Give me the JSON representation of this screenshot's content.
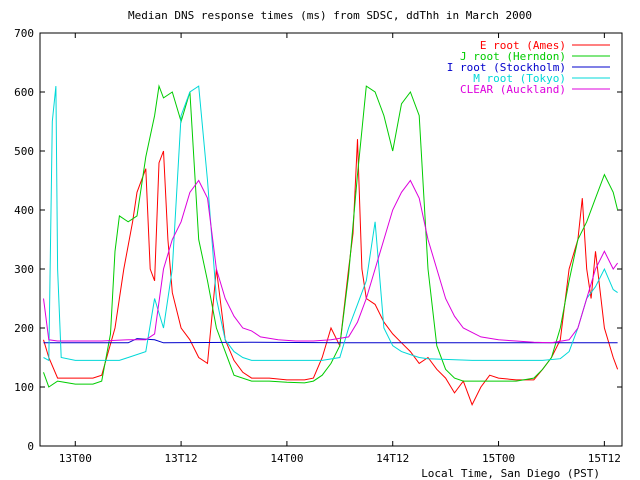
{
  "chart_data": {
    "type": "line",
    "title": "Median DNS response times (ms) from SDSC, ddThh in March 2000",
    "xlabel": "Local Time, San Diego (PST)",
    "ylabel": "",
    "ylim": [
      0,
      700
    ],
    "yticks": [
      0,
      100,
      200,
      300,
      400,
      500,
      600,
      700
    ],
    "xlim": [
      -4,
      62
    ],
    "xticks": [
      {
        "x": 0,
        "label": "13T00"
      },
      {
        "x": 12,
        "label": "13T12"
      },
      {
        "x": 24,
        "label": "14T00"
      },
      {
        "x": 36,
        "label": "14T12"
      },
      {
        "x": 48,
        "label": "15T00"
      },
      {
        "x": 60,
        "label": "15T12"
      }
    ],
    "grid": false,
    "legend_position": "top-right",
    "series": [
      {
        "name": "E root (Ames)",
        "color": "#ff0000",
        "points": [
          [
            -3.6,
            180
          ],
          [
            -3,
            150
          ],
          [
            -2,
            115
          ],
          [
            0,
            115
          ],
          [
            2,
            115
          ],
          [
            3,
            120
          ],
          [
            4.5,
            200
          ],
          [
            5.5,
            300
          ],
          [
            6.5,
            380
          ],
          [
            7,
            430
          ],
          [
            8,
            470
          ],
          [
            8.5,
            300
          ],
          [
            9,
            280
          ],
          [
            9.5,
            480
          ],
          [
            10,
            500
          ],
          [
            10.5,
            350
          ],
          [
            11,
            260
          ],
          [
            12,
            200
          ],
          [
            13,
            180
          ],
          [
            14,
            150
          ],
          [
            15,
            140
          ],
          [
            16,
            300
          ],
          [
            17,
            180
          ],
          [
            18,
            145
          ],
          [
            19,
            125
          ],
          [
            20,
            115
          ],
          [
            22,
            115
          ],
          [
            24,
            112
          ],
          [
            26,
            112
          ],
          [
            27,
            115
          ],
          [
            28,
            150
          ],
          [
            29,
            200
          ],
          [
            30,
            170
          ],
          [
            31,
            300
          ],
          [
            31.5,
            360
          ],
          [
            32,
            520
          ],
          [
            32.5,
            300
          ],
          [
            33,
            250
          ],
          [
            34,
            240
          ],
          [
            35,
            210
          ],
          [
            36,
            190
          ],
          [
            37,
            175
          ],
          [
            38,
            160
          ],
          [
            39,
            140
          ],
          [
            40,
            150
          ],
          [
            41,
            130
          ],
          [
            42,
            115
          ],
          [
            43,
            90
          ],
          [
            44,
            110
          ],
          [
            45,
            70
          ],
          [
            46,
            100
          ],
          [
            47,
            120
          ],
          [
            48,
            115
          ],
          [
            50,
            112
          ],
          [
            52,
            112
          ],
          [
            53,
            130
          ],
          [
            54,
            150
          ],
          [
            55,
            180
          ],
          [
            56,
            300
          ],
          [
            57,
            350
          ],
          [
            57.5,
            420
          ],
          [
            58,
            300
          ],
          [
            58.5,
            250
          ],
          [
            59,
            330
          ],
          [
            60,
            200
          ],
          [
            61,
            150
          ],
          [
            61.5,
            130
          ]
        ]
      },
      {
        "name": "J root (Herndon)",
        "color": "#00cc00",
        "points": [
          [
            -3.6,
            125
          ],
          [
            -3,
            100
          ],
          [
            -2,
            110
          ],
          [
            0,
            105
          ],
          [
            2,
            105
          ],
          [
            3,
            110
          ],
          [
            4,
            190
          ],
          [
            4.5,
            330
          ],
          [
            5,
            390
          ],
          [
            6,
            380
          ],
          [
            7,
            390
          ],
          [
            8,
            490
          ],
          [
            9,
            560
          ],
          [
            9.5,
            610
          ],
          [
            10,
            590
          ],
          [
            11,
            600
          ],
          [
            12,
            550
          ],
          [
            13,
            600
          ],
          [
            14,
            350
          ],
          [
            15,
            280
          ],
          [
            16,
            200
          ],
          [
            17,
            160
          ],
          [
            18,
            120
          ],
          [
            20,
            110
          ],
          [
            22,
            110
          ],
          [
            24,
            108
          ],
          [
            26,
            107
          ],
          [
            27,
            110
          ],
          [
            28,
            120
          ],
          [
            29,
            140
          ],
          [
            30,
            170
          ],
          [
            31,
            290
          ],
          [
            32,
            460
          ],
          [
            33,
            610
          ],
          [
            34,
            600
          ],
          [
            35,
            560
          ],
          [
            36,
            500
          ],
          [
            37,
            580
          ],
          [
            38,
            600
          ],
          [
            39,
            560
          ],
          [
            40,
            300
          ],
          [
            41,
            170
          ],
          [
            42,
            130
          ],
          [
            43,
            115
          ],
          [
            44,
            110
          ],
          [
            46,
            110
          ],
          [
            48,
            110
          ],
          [
            50,
            110
          ],
          [
            52,
            115
          ],
          [
            53,
            130
          ],
          [
            54,
            150
          ],
          [
            55,
            200
          ],
          [
            56,
            280
          ],
          [
            57,
            350
          ],
          [
            58,
            380
          ],
          [
            59,
            420
          ],
          [
            60,
            460
          ],
          [
            61,
            430
          ],
          [
            61.5,
            400
          ]
        ]
      },
      {
        "name": "I root (Stockholm)",
        "color": "#0000cc",
        "points": [
          [
            -3.6,
            175
          ],
          [
            6,
            175
          ],
          [
            7,
            182
          ],
          [
            9,
            180
          ],
          [
            10,
            175
          ],
          [
            20,
            176
          ],
          [
            30,
            175
          ],
          [
            40,
            175
          ],
          [
            50,
            175
          ],
          [
            61.5,
            175
          ]
        ]
      },
      {
        "name": "M root (Tokyo)",
        "color": "#00d8d8",
        "points": [
          [
            -3.6,
            150
          ],
          [
            -3,
            145
          ],
          [
            -2.6,
            550
          ],
          [
            -2.2,
            610
          ],
          [
            -2,
            300
          ],
          [
            -1.6,
            150
          ],
          [
            0,
            145
          ],
          [
            5,
            145
          ],
          [
            6,
            150
          ],
          [
            8,
            160
          ],
          [
            9,
            250
          ],
          [
            10,
            200
          ],
          [
            11,
            300
          ],
          [
            12,
            560
          ],
          [
            13,
            600
          ],
          [
            14,
            610
          ],
          [
            15,
            450
          ],
          [
            16,
            250
          ],
          [
            17,
            180
          ],
          [
            18,
            160
          ],
          [
            19,
            150
          ],
          [
            20,
            145
          ],
          [
            25,
            145
          ],
          [
            28,
            145
          ],
          [
            30,
            150
          ],
          [
            31,
            200
          ],
          [
            32,
            240
          ],
          [
            33,
            280
          ],
          [
            34,
            380
          ],
          [
            35,
            200
          ],
          [
            36,
            170
          ],
          [
            37,
            160
          ],
          [
            38,
            155
          ],
          [
            39,
            150
          ],
          [
            40,
            148
          ],
          [
            45,
            145
          ],
          [
            50,
            145
          ],
          [
            53,
            145
          ],
          [
            55,
            148
          ],
          [
            56,
            160
          ],
          [
            57,
            200
          ],
          [
            58,
            250
          ],
          [
            59,
            270
          ],
          [
            60,
            300
          ],
          [
            61,
            265
          ],
          [
            61.5,
            260
          ]
        ]
      },
      {
        "name": "CLEAR (Auckland)",
        "color": "#dd00dd",
        "points": [
          [
            -3.6,
            250
          ],
          [
            -3,
            180
          ],
          [
            -2,
            178
          ],
          [
            0,
            178
          ],
          [
            3,
            178
          ],
          [
            6,
            180
          ],
          [
            8,
            180
          ],
          [
            9,
            190
          ],
          [
            10,
            300
          ],
          [
            11,
            350
          ],
          [
            12,
            380
          ],
          [
            13,
            430
          ],
          [
            14,
            450
          ],
          [
            15,
            420
          ],
          [
            16,
            300
          ],
          [
            17,
            250
          ],
          [
            18,
            220
          ],
          [
            19,
            200
          ],
          [
            20,
            195
          ],
          [
            21,
            185
          ],
          [
            23,
            180
          ],
          [
            25,
            178
          ],
          [
            27,
            178
          ],
          [
            29,
            180
          ],
          [
            31,
            185
          ],
          [
            32,
            210
          ],
          [
            33,
            250
          ],
          [
            34,
            300
          ],
          [
            35,
            350
          ],
          [
            36,
            400
          ],
          [
            37,
            430
          ],
          [
            38,
            450
          ],
          [
            39,
            420
          ],
          [
            40,
            350
          ],
          [
            41,
            300
          ],
          [
            42,
            250
          ],
          [
            43,
            220
          ],
          [
            44,
            200
          ],
          [
            46,
            185
          ],
          [
            48,
            180
          ],
          [
            50,
            178
          ],
          [
            52,
            176
          ],
          [
            54,
            175
          ],
          [
            56,
            180
          ],
          [
            57,
            200
          ],
          [
            58,
            250
          ],
          [
            59,
            300
          ],
          [
            60,
            330
          ],
          [
            61,
            300
          ],
          [
            61.5,
            310
          ]
        ]
      }
    ]
  }
}
